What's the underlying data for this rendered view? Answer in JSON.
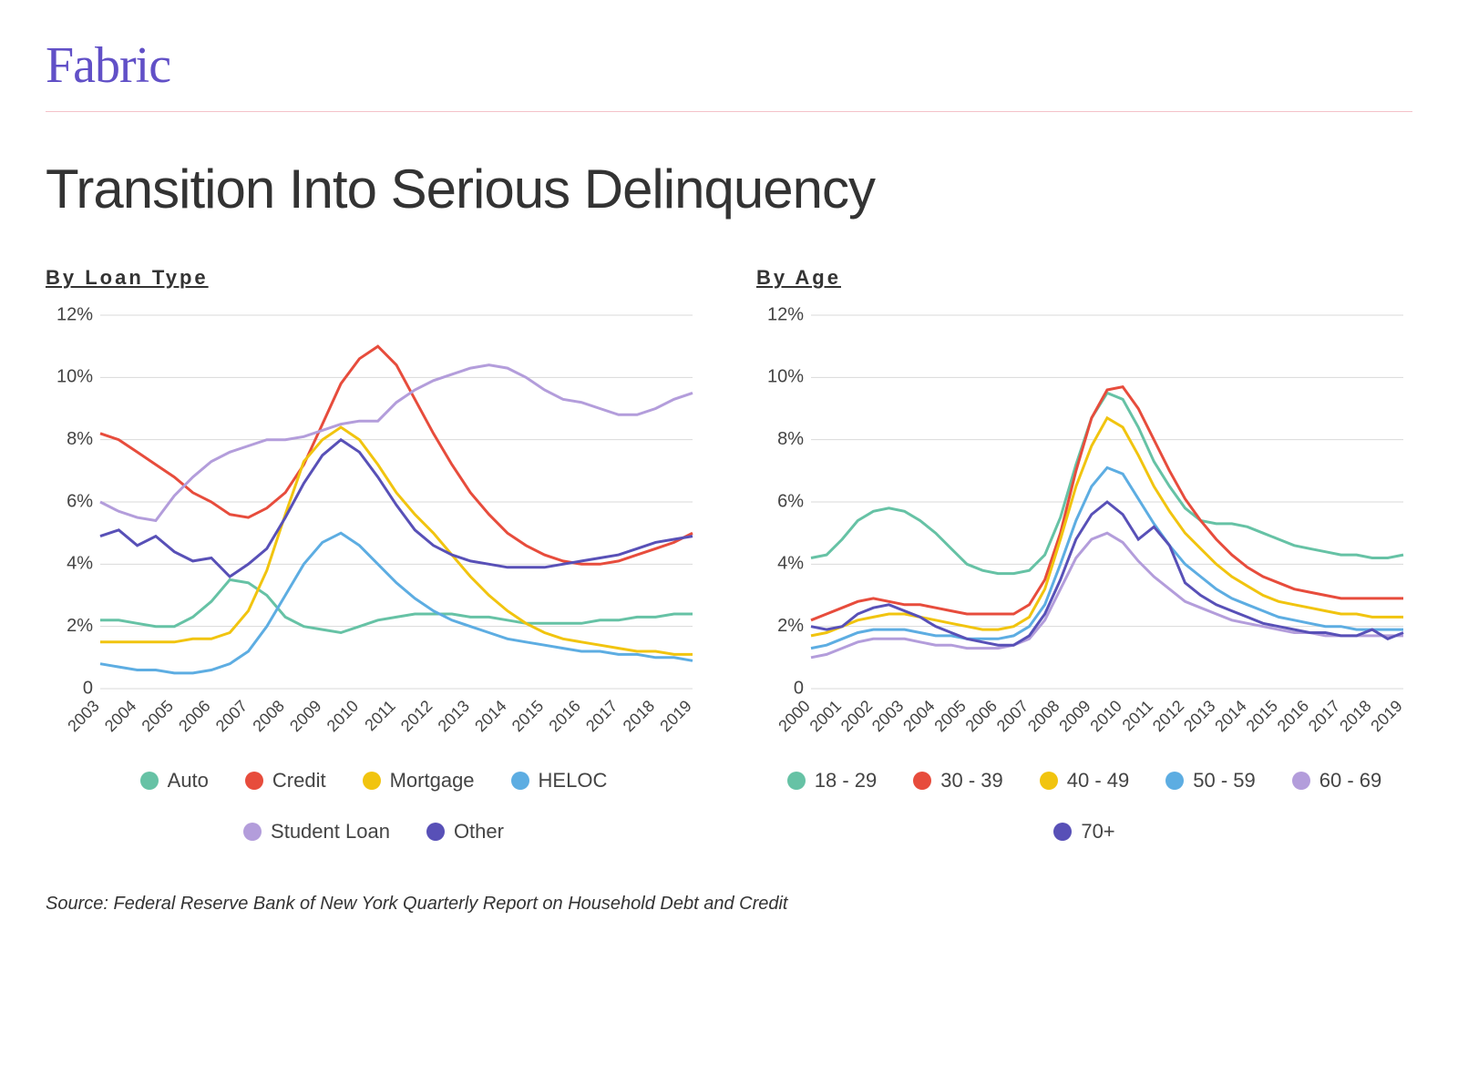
{
  "brand": {
    "logo_text": "Fabric",
    "logo_color": "#6150c7"
  },
  "title": "Transition Into Serious Delinquency",
  "title_fontsize": 60,
  "divider_color": "#f4c2c9",
  "background_color": "#ffffff",
  "grid_color": "#d9d9d9",
  "text_color": "#333333",
  "source": "Source: Federal Reserve Bank of New York Quarterly Report on Household Debt and Credit",
  "charts": {
    "loan_type": {
      "subtitle": "By Loan Type",
      "type": "line",
      "ylim": [
        0,
        12
      ],
      "ytick_step": 2,
      "ytick_suffix": "%",
      "x_labels": [
        "2003",
        "2004",
        "2005",
        "2006",
        "2007",
        "2008",
        "2009",
        "2010",
        "2011",
        "2012",
        "2013",
        "2014",
        "2015",
        "2016",
        "2017",
        "2018",
        "2019"
      ],
      "label_fontsize": 20,
      "line_width": 3,
      "series": [
        {
          "name": "Auto",
          "color": "#66c2a5",
          "values": [
            2.2,
            2.2,
            2.1,
            2.0,
            2.0,
            2.3,
            2.8,
            3.5,
            3.4,
            3.0,
            2.3,
            2.0,
            1.9,
            1.8,
            2.0,
            2.2,
            2.3,
            2.4,
            2.4,
            2.4,
            2.3,
            2.3,
            2.2,
            2.1,
            2.1,
            2.1,
            2.1,
            2.2,
            2.2,
            2.3,
            2.3,
            2.4,
            2.4
          ]
        },
        {
          "name": "Credit",
          "color": "#e74c3c",
          "values": [
            8.2,
            8.0,
            7.6,
            7.2,
            6.8,
            6.3,
            6.0,
            5.6,
            5.5,
            5.8,
            6.3,
            7.2,
            8.5,
            9.8,
            10.6,
            11.0,
            10.4,
            9.3,
            8.2,
            7.2,
            6.3,
            5.6,
            5.0,
            4.6,
            4.3,
            4.1,
            4.0,
            4.0,
            4.1,
            4.3,
            4.5,
            4.7,
            5.0
          ]
        },
        {
          "name": "Mortgage",
          "color": "#f1c40f",
          "values": [
            1.5,
            1.5,
            1.5,
            1.5,
            1.5,
            1.6,
            1.6,
            1.8,
            2.5,
            3.8,
            5.6,
            7.3,
            8.0,
            8.4,
            8.0,
            7.2,
            6.3,
            5.6,
            5.0,
            4.3,
            3.6,
            3.0,
            2.5,
            2.1,
            1.8,
            1.6,
            1.5,
            1.4,
            1.3,
            1.2,
            1.2,
            1.1,
            1.1
          ]
        },
        {
          "name": "HELOC",
          "color": "#5dade2",
          "values": [
            0.8,
            0.7,
            0.6,
            0.6,
            0.5,
            0.5,
            0.6,
            0.8,
            1.2,
            2.0,
            3.0,
            4.0,
            4.7,
            5.0,
            4.6,
            4.0,
            3.4,
            2.9,
            2.5,
            2.2,
            2.0,
            1.8,
            1.6,
            1.5,
            1.4,
            1.3,
            1.2,
            1.2,
            1.1,
            1.1,
            1.0,
            1.0,
            0.9
          ]
        },
        {
          "name": "Student Loan",
          "color": "#b39ddb",
          "values": [
            6.0,
            5.7,
            5.5,
            5.4,
            6.2,
            6.8,
            7.3,
            7.6,
            7.8,
            8.0,
            8.0,
            8.1,
            8.3,
            8.5,
            8.6,
            8.6,
            9.2,
            9.6,
            9.9,
            10.1,
            10.3,
            10.4,
            10.3,
            10.0,
            9.6,
            9.3,
            9.2,
            9.0,
            8.8,
            8.8,
            9.0,
            9.3,
            9.5
          ]
        },
        {
          "name": "Other",
          "color": "#5850b7",
          "values": [
            4.9,
            5.1,
            4.6,
            4.9,
            4.4,
            4.1,
            4.2,
            3.6,
            4.0,
            4.5,
            5.5,
            6.6,
            7.5,
            8.0,
            7.6,
            6.8,
            5.9,
            5.1,
            4.6,
            4.3,
            4.1,
            4.0,
            3.9,
            3.9,
            3.9,
            4.0,
            4.1,
            4.2,
            4.3,
            4.5,
            4.7,
            4.8,
            4.9
          ]
        }
      ]
    },
    "by_age": {
      "subtitle": "By Age",
      "type": "line",
      "ylim": [
        0,
        12
      ],
      "ytick_step": 2,
      "ytick_suffix": "%",
      "x_labels": [
        "2000",
        "2001",
        "2002",
        "2003",
        "2004",
        "2005",
        "2006",
        "2007",
        "2008",
        "2009",
        "2010",
        "2011",
        "2012",
        "2013",
        "2014",
        "2015",
        "2016",
        "2017",
        "2018",
        "2019"
      ],
      "label_fontsize": 20,
      "line_width": 3,
      "series": [
        {
          "name": "18 - 29",
          "color": "#66c2a5",
          "values": [
            4.2,
            4.3,
            4.8,
            5.4,
            5.7,
            5.8,
            5.7,
            5.4,
            5.0,
            4.5,
            4.0,
            3.8,
            3.7,
            3.7,
            3.8,
            4.3,
            5.5,
            7.2,
            8.7,
            9.5,
            9.3,
            8.4,
            7.3,
            6.5,
            5.8,
            5.4,
            5.3,
            5.3,
            5.2,
            5.0,
            4.8,
            4.6,
            4.5,
            4.4,
            4.3,
            4.3,
            4.2,
            4.2,
            4.3
          ]
        },
        {
          "name": "30 - 39",
          "color": "#e74c3c",
          "values": [
            2.2,
            2.4,
            2.6,
            2.8,
            2.9,
            2.8,
            2.7,
            2.7,
            2.6,
            2.5,
            2.4,
            2.4,
            2.4,
            2.4,
            2.7,
            3.5,
            5.0,
            7.0,
            8.7,
            9.6,
            9.7,
            9.0,
            8.0,
            7.0,
            6.1,
            5.4,
            4.8,
            4.3,
            3.9,
            3.6,
            3.4,
            3.2,
            3.1,
            3.0,
            2.9,
            2.9,
            2.9,
            2.9,
            2.9
          ]
        },
        {
          "name": "40 - 49",
          "color": "#f1c40f",
          "values": [
            1.7,
            1.8,
            2.0,
            2.2,
            2.3,
            2.4,
            2.4,
            2.3,
            2.2,
            2.1,
            2.0,
            1.9,
            1.9,
            2.0,
            2.3,
            3.2,
            4.8,
            6.5,
            7.8,
            8.7,
            8.4,
            7.5,
            6.5,
            5.7,
            5.0,
            4.5,
            4.0,
            3.6,
            3.3,
            3.0,
            2.8,
            2.7,
            2.6,
            2.5,
            2.4,
            2.4,
            2.3,
            2.3,
            2.3
          ]
        },
        {
          "name": "50 - 59",
          "color": "#5dade2",
          "values": [
            1.3,
            1.4,
            1.6,
            1.8,
            1.9,
            1.9,
            1.9,
            1.8,
            1.7,
            1.7,
            1.6,
            1.6,
            1.6,
            1.7,
            2.0,
            2.7,
            4.0,
            5.4,
            6.5,
            7.1,
            6.9,
            6.1,
            5.3,
            4.6,
            4.0,
            3.6,
            3.2,
            2.9,
            2.7,
            2.5,
            2.3,
            2.2,
            2.1,
            2.0,
            2.0,
            1.9,
            1.9,
            1.9,
            1.9
          ]
        },
        {
          "name": "60 - 69",
          "color": "#b39ddb",
          "values": [
            1.0,
            1.1,
            1.3,
            1.5,
            1.6,
            1.6,
            1.6,
            1.5,
            1.4,
            1.4,
            1.3,
            1.3,
            1.3,
            1.4,
            1.6,
            2.2,
            3.2,
            4.2,
            4.8,
            5.0,
            4.7,
            4.1,
            3.6,
            3.2,
            2.8,
            2.6,
            2.4,
            2.2,
            2.1,
            2.0,
            1.9,
            1.8,
            1.8,
            1.7,
            1.7,
            1.7,
            1.7,
            1.7,
            1.7
          ]
        },
        {
          "name": "70+",
          "color": "#5850b7",
          "values": [
            2.0,
            1.9,
            2.0,
            2.4,
            2.6,
            2.7,
            2.5,
            2.3,
            2.0,
            1.8,
            1.6,
            1.5,
            1.4,
            1.4,
            1.7,
            2.4,
            3.5,
            4.8,
            5.6,
            6.0,
            5.6,
            4.8,
            5.2,
            4.6,
            3.4,
            3.0,
            2.7,
            2.5,
            2.3,
            2.1,
            2.0,
            1.9,
            1.8,
            1.8,
            1.7,
            1.7,
            1.9,
            1.6,
            1.8
          ]
        }
      ]
    }
  }
}
